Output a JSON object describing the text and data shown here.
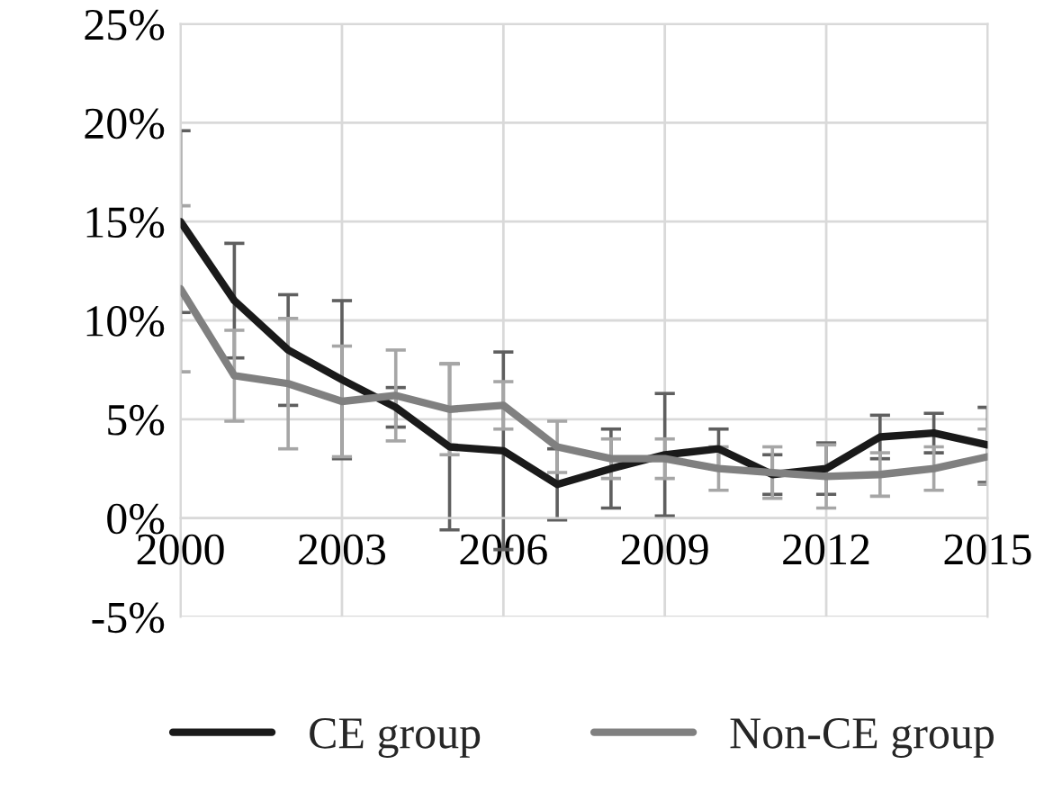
{
  "chart_data": {
    "type": "line",
    "x": [
      2000,
      2001,
      2002,
      2003,
      2004,
      2005,
      2006,
      2007,
      2008,
      2009,
      2010,
      2011,
      2012,
      2013,
      2014,
      2015
    ],
    "series": [
      {
        "name": "CE group",
        "color": "#1a1a1a",
        "values": [
          15.0,
          11.0,
          8.5,
          7.0,
          5.6,
          3.6,
          3.4,
          1.7,
          2.5,
          3.2,
          3.5,
          2.2,
          2.5,
          4.1,
          4.3,
          3.7
        ],
        "errors": [
          4.6,
          2.9,
          2.8,
          4.0,
          1.0,
          4.2,
          5.0,
          1.8,
          2.0,
          3.1,
          1.0,
          1.0,
          1.3,
          1.1,
          1.0,
          1.9
        ]
      },
      {
        "name": "Non-CE group",
        "color": "#808080",
        "values": [
          11.6,
          7.2,
          6.8,
          5.9,
          6.2,
          5.5,
          5.7,
          3.6,
          3.0,
          3.0,
          2.5,
          2.3,
          2.1,
          2.2,
          2.5,
          3.1
        ],
        "errors": [
          4.2,
          2.3,
          3.3,
          2.8,
          2.3,
          2.3,
          1.2,
          1.3,
          1.0,
          1.0,
          1.1,
          1.3,
          1.6,
          1.1,
          1.1,
          1.4
        ]
      }
    ],
    "xlim": [
      2000,
      2015
    ],
    "xticks": [
      2000,
      2003,
      2006,
      2009,
      2012,
      2015
    ],
    "ylim": [
      -5,
      25
    ],
    "yticks": [
      {
        "value": -5,
        "label": "-5%"
      },
      {
        "value": 0,
        "label": "0%"
      },
      {
        "value": 5,
        "label": "5%"
      },
      {
        "value": 10,
        "label": "10%"
      },
      {
        "value": 15,
        "label": "15%"
      },
      {
        "value": 20,
        "label": "20%"
      },
      {
        "value": 25,
        "label": "25%"
      }
    ],
    "grid": true,
    "legend": "bottom",
    "marker": "none",
    "line_style": "solid"
  }
}
